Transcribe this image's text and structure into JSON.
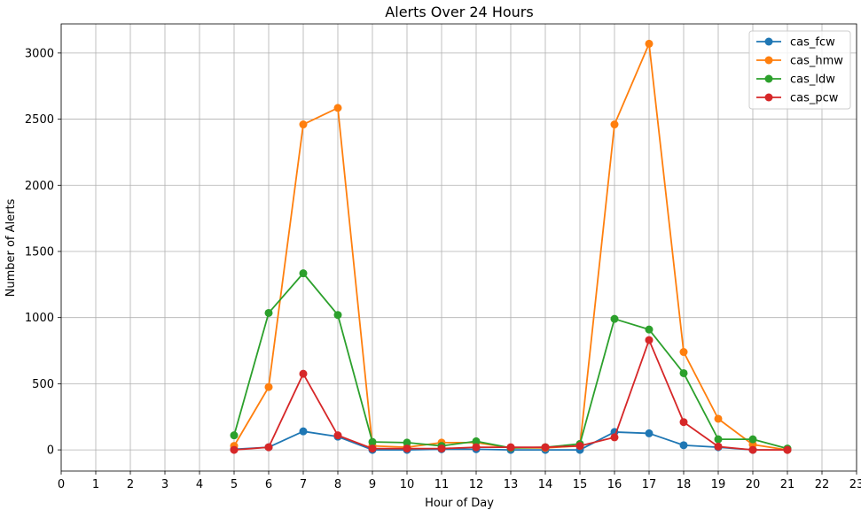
{
  "chart_data": {
    "type": "line",
    "title": "Alerts Over 24 Hours",
    "xlabel": "Hour of Day",
    "ylabel": "Number of Alerts",
    "xlim": [
      0,
      23
    ],
    "ylim": [
      -160,
      3220
    ],
    "xticks": [
      0,
      1,
      2,
      3,
      4,
      5,
      6,
      7,
      8,
      9,
      10,
      11,
      12,
      13,
      14,
      15,
      16,
      17,
      18,
      19,
      20,
      21,
      22,
      23
    ],
    "yticks": [
      0,
      500,
      1000,
      1500,
      2000,
      2500,
      3000
    ],
    "grid": true,
    "legend_position": "top-right",
    "x": [
      5,
      6,
      7,
      8,
      9,
      10,
      11,
      12,
      13,
      14,
      15,
      16,
      17,
      18,
      19,
      20,
      21
    ],
    "series": [
      {
        "name": "cas_fcw",
        "color": "#1f77b4",
        "values": [
          5,
          20,
          140,
          100,
          0,
          0,
          5,
          5,
          0,
          0,
          0,
          135,
          125,
          35,
          20,
          0,
          0
        ]
      },
      {
        "name": "cas_hmw",
        "color": "#ff7f0e",
        "values": [
          30,
          475,
          2460,
          2585,
          30,
          20,
          55,
          55,
          15,
          15,
          30,
          2460,
          3070,
          740,
          235,
          40,
          0
        ]
      },
      {
        "name": "cas_ldw",
        "color": "#2ca02c",
        "values": [
          110,
          1035,
          1335,
          1020,
          60,
          55,
          30,
          65,
          15,
          20,
          45,
          990,
          910,
          580,
          80,
          80,
          10
        ]
      },
      {
        "name": "cas_pcw",
        "color": "#d62728",
        "values": [
          0,
          20,
          575,
          110,
          10,
          10,
          10,
          20,
          20,
          20,
          30,
          95,
          830,
          210,
          25,
          0,
          0
        ]
      }
    ]
  }
}
